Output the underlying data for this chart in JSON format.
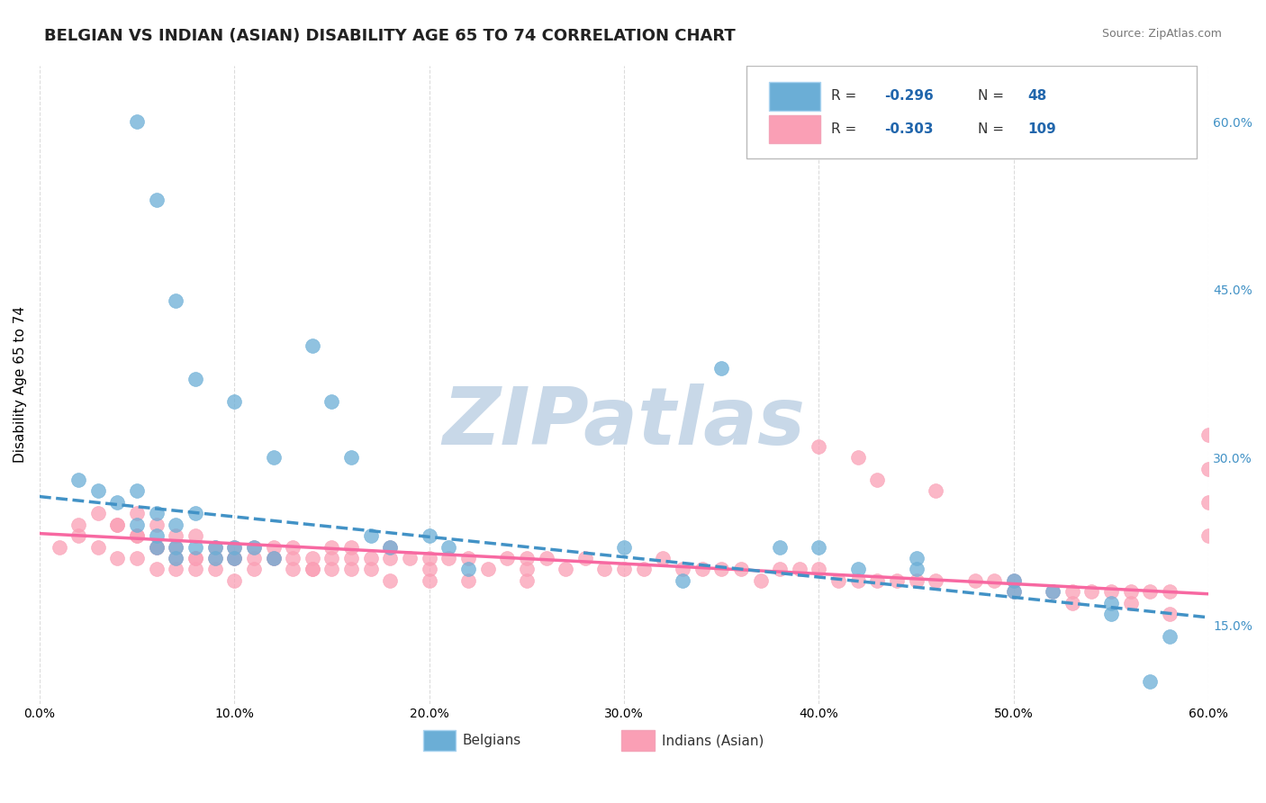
{
  "title": "BELGIAN VS INDIAN (ASIAN) DISABILITY AGE 65 TO 74 CORRELATION CHART",
  "source": "Source: ZipAtlas.com",
  "ylabel": "Disability Age 65 to 74",
  "xlim": [
    0.0,
    0.6
  ],
  "ylim": [
    0.08,
    0.65
  ],
  "xticks": [
    0.0,
    0.1,
    0.2,
    0.3,
    0.4,
    0.5,
    0.6
  ],
  "xticklabels": [
    "0.0%",
    "10.0%",
    "20.0%",
    "30.0%",
    "40.0%",
    "50.0%",
    "60.0%"
  ],
  "yticks_right": [
    0.15,
    0.3,
    0.45,
    0.6
  ],
  "ytick_labels_right": [
    "15.0%",
    "30.0%",
    "45.0%",
    "60.0%"
  ],
  "belgian_R": -0.296,
  "belgian_N": 48,
  "indian_R": -0.303,
  "indian_N": 109,
  "legend_labels": [
    "Belgians",
    "Indians (Asian)"
  ],
  "blue_color": "#6baed6",
  "pink_color": "#fa9fb5",
  "blue_line_color": "#4292c6",
  "pink_line_color": "#f768a1",
  "watermark": "ZIPatlas",
  "watermark_color": "#c8d8e8",
  "background_color": "#ffffff",
  "grid_color": "#cccccc",
  "title_fontsize": 13,
  "axis_label_fontsize": 11,
  "tick_fontsize": 10,
  "legend_fontsize": 11,
  "belgian_x": [
    0.02,
    0.03,
    0.04,
    0.05,
    0.05,
    0.06,
    0.06,
    0.06,
    0.07,
    0.07,
    0.07,
    0.08,
    0.08,
    0.09,
    0.09,
    0.1,
    0.1,
    0.11,
    0.12,
    0.14,
    0.15,
    0.16,
    0.17,
    0.18,
    0.2,
    0.21,
    0.22,
    0.3,
    0.33,
    0.38,
    0.42,
    0.45,
    0.5,
    0.55,
    0.57,
    0.05,
    0.06,
    0.07,
    0.08,
    0.1,
    0.12,
    0.35,
    0.4,
    0.45,
    0.5,
    0.52,
    0.55,
    0.58
  ],
  "belgian_y": [
    0.28,
    0.27,
    0.26,
    0.27,
    0.24,
    0.25,
    0.23,
    0.22,
    0.24,
    0.22,
    0.21,
    0.25,
    0.22,
    0.22,
    0.21,
    0.22,
    0.21,
    0.22,
    0.21,
    0.4,
    0.35,
    0.3,
    0.23,
    0.22,
    0.23,
    0.22,
    0.2,
    0.22,
    0.19,
    0.22,
    0.2,
    0.21,
    0.18,
    0.17,
    0.1,
    0.6,
    0.53,
    0.44,
    0.37,
    0.35,
    0.3,
    0.38,
    0.22,
    0.2,
    0.19,
    0.18,
    0.16,
    0.14
  ],
  "indian_x": [
    0.01,
    0.02,
    0.02,
    0.03,
    0.03,
    0.04,
    0.04,
    0.05,
    0.05,
    0.05,
    0.06,
    0.06,
    0.06,
    0.07,
    0.07,
    0.07,
    0.08,
    0.08,
    0.08,
    0.09,
    0.09,
    0.1,
    0.1,
    0.1,
    0.11,
    0.11,
    0.12,
    0.12,
    0.13,
    0.13,
    0.14,
    0.14,
    0.15,
    0.15,
    0.16,
    0.16,
    0.17,
    0.18,
    0.18,
    0.19,
    0.2,
    0.2,
    0.21,
    0.22,
    0.23,
    0.24,
    0.25,
    0.25,
    0.26,
    0.27,
    0.28,
    0.29,
    0.3,
    0.31,
    0.32,
    0.33,
    0.34,
    0.35,
    0.36,
    0.37,
    0.38,
    0.39,
    0.4,
    0.41,
    0.42,
    0.43,
    0.44,
    0.45,
    0.46,
    0.48,
    0.49,
    0.5,
    0.52,
    0.53,
    0.54,
    0.55,
    0.56,
    0.57,
    0.58,
    0.4,
    0.42,
    0.43,
    0.46,
    0.5,
    0.53,
    0.56,
    0.58,
    0.6,
    0.6,
    0.6,
    0.6,
    0.04,
    0.05,
    0.06,
    0.07,
    0.08,
    0.09,
    0.1,
    0.11,
    0.12,
    0.13,
    0.14,
    0.15,
    0.16,
    0.17,
    0.18,
    0.2,
    0.22,
    0.25
  ],
  "indian_y": [
    0.22,
    0.24,
    0.23,
    0.25,
    0.22,
    0.24,
    0.21,
    0.25,
    0.23,
    0.21,
    0.24,
    0.22,
    0.2,
    0.23,
    0.21,
    0.2,
    0.23,
    0.21,
    0.2,
    0.22,
    0.2,
    0.22,
    0.21,
    0.19,
    0.22,
    0.2,
    0.22,
    0.21,
    0.22,
    0.21,
    0.21,
    0.2,
    0.22,
    0.21,
    0.22,
    0.21,
    0.21,
    0.22,
    0.21,
    0.21,
    0.21,
    0.2,
    0.21,
    0.21,
    0.2,
    0.21,
    0.21,
    0.2,
    0.21,
    0.2,
    0.21,
    0.2,
    0.2,
    0.2,
    0.21,
    0.2,
    0.2,
    0.2,
    0.2,
    0.19,
    0.2,
    0.2,
    0.2,
    0.19,
    0.19,
    0.19,
    0.19,
    0.19,
    0.19,
    0.19,
    0.19,
    0.19,
    0.18,
    0.18,
    0.18,
    0.18,
    0.18,
    0.18,
    0.18,
    0.31,
    0.3,
    0.28,
    0.27,
    0.18,
    0.17,
    0.17,
    0.16,
    0.32,
    0.29,
    0.26,
    0.23,
    0.24,
    0.23,
    0.22,
    0.22,
    0.21,
    0.21,
    0.21,
    0.21,
    0.21,
    0.2,
    0.2,
    0.2,
    0.2,
    0.2,
    0.19,
    0.19,
    0.19,
    0.19
  ],
  "belgian_trend_x": [
    0.0,
    0.6
  ],
  "belgian_trend_y": [
    0.265,
    0.157
  ],
  "indian_trend_x": [
    0.0,
    0.6
  ],
  "indian_trend_y": [
    0.232,
    0.178
  ]
}
